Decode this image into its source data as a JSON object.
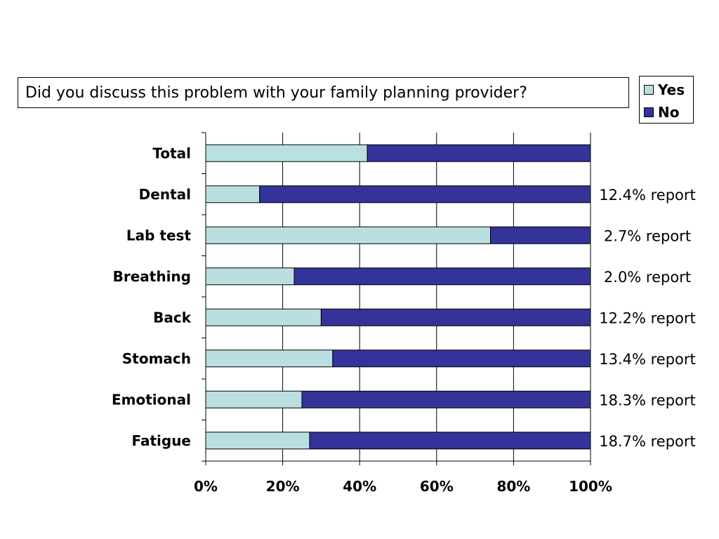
{
  "chart_data": {
    "type": "bar",
    "orientation": "horizontal",
    "stacked": "percent",
    "title": "Did you discuss this problem with your family planning provider?",
    "categories": [
      "Total",
      "Dental",
      "Lab test",
      "Breathing",
      "Back",
      "Stomach",
      "Emotional",
      "Fatigue"
    ],
    "series": [
      {
        "name": "Yes",
        "color": "#b9dfe1",
        "values": [
          42,
          14,
          74,
          23,
          30,
          33,
          25,
          27
        ]
      },
      {
        "name": "No",
        "color": "#333399",
        "values": [
          58,
          86,
          26,
          77,
          70,
          67,
          75,
          73
        ]
      }
    ],
    "annotations": [
      "",
      "12.4% report",
      "2.7% report",
      "2.0% report",
      "12.2% report",
      "13.4% report",
      "18.3% report",
      "18.7% report"
    ],
    "xlim": [
      0,
      100
    ],
    "x_ticks": [
      "0%",
      "20%",
      "40%",
      "60%",
      "80%",
      "100%"
    ],
    "xlabel": "",
    "ylabel": "",
    "grid": "vertical",
    "legend": "top-right"
  }
}
